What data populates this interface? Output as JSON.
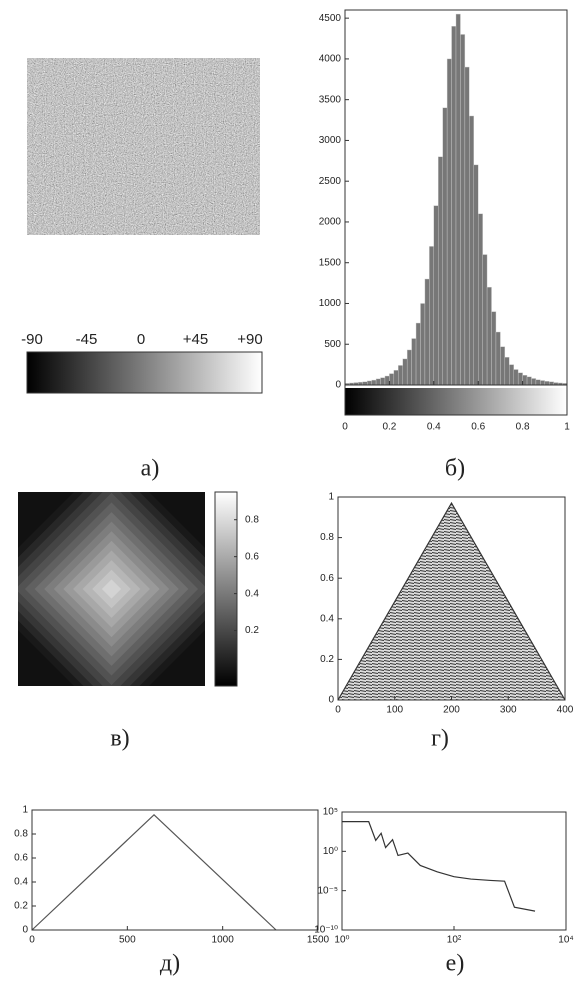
{
  "chart_data": [
    {
      "type": "image",
      "panel_label": "а)",
      "colorbar": {
        "xlim": [
          -90,
          90
        ],
        "xticks": [
          -90,
          -45,
          0,
          {
            "value": 45,
            "label": "+45"
          },
          {
            "value": 90,
            "label": "+90"
          }
        ]
      }
    },
    {
      "type": "histogram",
      "panel_label": "б)",
      "color": "#777777",
      "bins": [
        0,
        0.02,
        0.04,
        0.06,
        0.08,
        0.1,
        0.12,
        0.14,
        0.16,
        0.18,
        0.2,
        0.22,
        0.24,
        0.26,
        0.28,
        0.3,
        0.32,
        0.34,
        0.36,
        0.38,
        0.4,
        0.42,
        0.44,
        0.46,
        0.48,
        0.5,
        0.52,
        0.54,
        0.56,
        0.58,
        0.6,
        0.62,
        0.64,
        0.66,
        0.68,
        0.7,
        0.72,
        0.74,
        0.76,
        0.78,
        0.8,
        0.82,
        0.84,
        0.86,
        0.88,
        0.9,
        0.92,
        0.94,
        0.96,
        0.98,
        1
      ],
      "values": [
        20,
        25,
        30,
        35,
        40,
        50,
        60,
        75,
        90,
        110,
        140,
        180,
        240,
        320,
        430,
        570,
        760,
        1000,
        1300,
        1700,
        2200,
        2800,
        3400,
        4000,
        4400,
        4550,
        4300,
        3900,
        3300,
        2700,
        2100,
        1600,
        1200,
        900,
        650,
        470,
        340,
        250,
        190,
        150,
        120,
        100,
        80,
        65,
        55,
        45,
        40,
        30,
        25,
        20
      ],
      "xlim": [
        0,
        1
      ],
      "xticks": [
        0,
        0.2,
        0.4,
        0.6,
        0.8,
        1
      ],
      "ylim": [
        0,
        4600
      ],
      "yticks": [
        0,
        500,
        1000,
        1500,
        2000,
        2500,
        3000,
        3500,
        4000,
        4500
      ]
    },
    {
      "type": "heatmap",
      "panel_label": "в)",
      "colorbar": {
        "ylim": [
          -0.1,
          0.95
        ],
        "yticks": [
          0.2,
          0.4,
          0.6,
          0.8
        ]
      }
    },
    {
      "type": "line",
      "panel_label": "г)",
      "fill": "hatched",
      "x": [
        0,
        200,
        400
      ],
      "series": [
        {
          "color": "#333333",
          "values": [
            0,
            0.97,
            0
          ]
        }
      ],
      "xlim": [
        0,
        400
      ],
      "xticks": [
        0,
        100,
        200,
        300,
        400
      ],
      "ylim": [
        0,
        1
      ],
      "yticks": [
        0,
        0.2,
        0.4,
        0.6,
        0.8,
        1
      ]
    },
    {
      "type": "line",
      "panel_label": "д)",
      "x": [
        0,
        640,
        1280
      ],
      "series": [
        {
          "color": "#555555",
          "values": [
            0,
            0.96,
            0
          ]
        }
      ],
      "xlim": [
        0,
        1500
      ],
      "xticks": [
        0,
        500,
        1000,
        1500
      ],
      "ylim": [
        0,
        1
      ],
      "yticks": [
        0,
        0.2,
        0.4,
        0.6,
        0.8,
        1
      ]
    },
    {
      "type": "line",
      "panel_label": "е)",
      "log_x": true,
      "log_y": true,
      "x": [
        1,
        3,
        4,
        5,
        6,
        8,
        10,
        15,
        25,
        50,
        100,
        200,
        450,
        800,
        1200,
        2800
      ],
      "series": [
        {
          "color": "#333333",
          "values": [
            6000,
            6000,
            25,
            200,
            3,
            30,
            0.3,
            0.6,
            0.016,
            0.0025,
            0.0006,
            0.0003,
            0.0002,
            0.00016,
            8e-08,
            2.5e-08
          ]
        }
      ],
      "xlim": [
        1,
        10000
      ],
      "xticks": [
        {
          "value": 1,
          "label": "10⁰"
        },
        {
          "value": 100,
          "label": "10²"
        },
        {
          "value": 10000,
          "label": "10⁴"
        }
      ],
      "ylim": [
        1e-10,
        100000
      ],
      "yticks": [
        {
          "value": 1e-10,
          "label": "10⁻¹⁰"
        },
        {
          "value": 1e-05,
          "label": "10⁻⁵"
        },
        {
          "value": 1,
          "label": "10⁰"
        },
        {
          "value": 100000,
          "label": "10⁵"
        }
      ]
    }
  ]
}
